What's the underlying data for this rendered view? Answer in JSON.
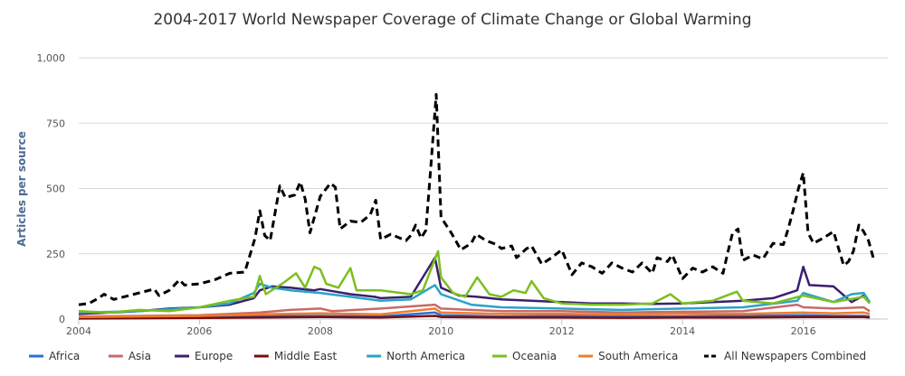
{
  "chart_data": {
    "type": "line",
    "title": "2004-2017 World Newspaper Coverage of Climate Change or Global Warming",
    "ylabel": "Articles per source",
    "xlabel": "",
    "xlim": [
      2004,
      2017.4
    ],
    "ylim": [
      0,
      1000
    ],
    "x_ticks": [
      2004,
      2006,
      2008,
      2010,
      2012,
      2014,
      2016
    ],
    "x_tick_labels": [
      "2004",
      "2006",
      "2008",
      "2010",
      "2012",
      "2014",
      "2016"
    ],
    "y_ticks": [
      0,
      250,
      500,
      750,
      1000
    ],
    "y_tick_labels": [
      "0",
      "250",
      "500",
      "750",
      "1,000"
    ],
    "grid": "horizontal",
    "legend": "bottom",
    "x_resolution": "monthly (x = year + (month-1)/12)",
    "series": [
      {
        "name": "Africa",
        "color": "#2a6fd6",
        "dashed": false,
        "points": [
          [
            2004.0,
            5
          ],
          [
            2005.0,
            6
          ],
          [
            2006.0,
            8
          ],
          [
            2007.0,
            10
          ],
          [
            2007.5,
            12
          ],
          [
            2008.0,
            12
          ],
          [
            2009.0,
            10
          ],
          [
            2009.9,
            25
          ],
          [
            2010.0,
            15
          ],
          [
            2011.0,
            10
          ],
          [
            2012.0,
            12
          ],
          [
            2013.0,
            10
          ],
          [
            2014.0,
            10
          ],
          [
            2015.0,
            12
          ],
          [
            2016.0,
            15
          ],
          [
            2016.5,
            12
          ],
          [
            2017.0,
            12
          ],
          [
            2017.1,
            10
          ]
        ]
      },
      {
        "name": "Asia",
        "color": "#c96a6a",
        "dashed": false,
        "points": [
          [
            2004.0,
            10
          ],
          [
            2005.0,
            12
          ],
          [
            2006.0,
            15
          ],
          [
            2007.0,
            25
          ],
          [
            2007.5,
            35
          ],
          [
            2008.0,
            40
          ],
          [
            2008.2,
            30
          ],
          [
            2009.0,
            40
          ],
          [
            2009.9,
            55
          ],
          [
            2010.0,
            40
          ],
          [
            2010.5,
            35
          ],
          [
            2011.0,
            30
          ],
          [
            2012.0,
            30
          ],
          [
            2013.0,
            25
          ],
          [
            2014.0,
            28
          ],
          [
            2015.0,
            30
          ],
          [
            2015.9,
            55
          ],
          [
            2016.0,
            45
          ],
          [
            2016.5,
            40
          ],
          [
            2017.0,
            45
          ],
          [
            2017.1,
            30
          ]
        ]
      },
      {
        "name": "Europe",
        "color": "#3b1f6e",
        "dashed": false,
        "points": [
          [
            2004.0,
            20
          ],
          [
            2004.5,
            25
          ],
          [
            2005.0,
            30
          ],
          [
            2005.5,
            40
          ],
          [
            2006.0,
            45
          ],
          [
            2006.5,
            55
          ],
          [
            2006.9,
            80
          ],
          [
            2007.0,
            110
          ],
          [
            2007.2,
            125
          ],
          [
            2007.5,
            120
          ],
          [
            2007.9,
            110
          ],
          [
            2008.0,
            115
          ],
          [
            2008.5,
            95
          ],
          [
            2008.9,
            85
          ],
          [
            2009.0,
            80
          ],
          [
            2009.5,
            85
          ],
          [
            2009.9,
            235
          ],
          [
            2010.0,
            120
          ],
          [
            2010.3,
            90
          ],
          [
            2010.6,
            85
          ],
          [
            2011.0,
            75
          ],
          [
            2011.5,
            70
          ],
          [
            2012.0,
            65
          ],
          [
            2012.5,
            60
          ],
          [
            2013.0,
            60
          ],
          [
            2013.5,
            58
          ],
          [
            2014.0,
            60
          ],
          [
            2014.5,
            65
          ],
          [
            2015.0,
            70
          ],
          [
            2015.5,
            80
          ],
          [
            2015.9,
            110
          ],
          [
            2016.0,
            200
          ],
          [
            2016.1,
            130
          ],
          [
            2016.5,
            125
          ],
          [
            2016.8,
            65
          ],
          [
            2017.0,
            90
          ],
          [
            2017.1,
            65
          ]
        ]
      },
      {
        "name": "Middle East",
        "color": "#7a0d0d",
        "dashed": false,
        "points": [
          [
            2004.0,
            2
          ],
          [
            2006.0,
            4
          ],
          [
            2007.0,
            6
          ],
          [
            2008.0,
            8
          ],
          [
            2009.0,
            6
          ],
          [
            2009.9,
            12
          ],
          [
            2010.0,
            8
          ],
          [
            2011.0,
            6
          ],
          [
            2012.0,
            6
          ],
          [
            2013.0,
            5
          ],
          [
            2014.0,
            6
          ],
          [
            2015.0,
            6
          ],
          [
            2016.0,
            8
          ],
          [
            2017.0,
            8
          ],
          [
            2017.1,
            6
          ]
        ]
      },
      {
        "name": "North America",
        "color": "#2aa3c9",
        "dashed": false,
        "points": [
          [
            2004.0,
            25
          ],
          [
            2005.0,
            30
          ],
          [
            2006.0,
            45
          ],
          [
            2006.5,
            60
          ],
          [
            2006.9,
            100
          ],
          [
            2007.0,
            135
          ],
          [
            2007.2,
            120
          ],
          [
            2007.5,
            110
          ],
          [
            2008.0,
            100
          ],
          [
            2008.5,
            85
          ],
          [
            2009.0,
            70
          ],
          [
            2009.5,
            75
          ],
          [
            2009.9,
            130
          ],
          [
            2010.0,
            95
          ],
          [
            2010.5,
            55
          ],
          [
            2011.0,
            45
          ],
          [
            2012.0,
            40
          ],
          [
            2013.0,
            35
          ],
          [
            2014.0,
            40
          ],
          [
            2015.0,
            45
          ],
          [
            2015.9,
            70
          ],
          [
            2016.0,
            100
          ],
          [
            2016.5,
            65
          ],
          [
            2016.8,
            95
          ],
          [
            2017.0,
            100
          ],
          [
            2017.1,
            65
          ]
        ]
      },
      {
        "name": "Oceania",
        "color": "#7bbf1e",
        "dashed": false,
        "points": [
          [
            2004.0,
            30
          ],
          [
            2004.5,
            25
          ],
          [
            2005.0,
            35
          ],
          [
            2005.5,
            30
          ],
          [
            2006.0,
            45
          ],
          [
            2006.5,
            70
          ],
          [
            2006.9,
            85
          ],
          [
            2007.0,
            165
          ],
          [
            2007.1,
            95
          ],
          [
            2007.4,
            140
          ],
          [
            2007.6,
            175
          ],
          [
            2007.75,
            120
          ],
          [
            2007.9,
            200
          ],
          [
            2008.0,
            190
          ],
          [
            2008.1,
            135
          ],
          [
            2008.3,
            120
          ],
          [
            2008.5,
            195
          ],
          [
            2008.6,
            110
          ],
          [
            2009.0,
            110
          ],
          [
            2009.5,
            95
          ],
          [
            2009.7,
            110
          ],
          [
            2009.9,
            230
          ],
          [
            2009.95,
            260
          ],
          [
            2010.0,
            160
          ],
          [
            2010.2,
            100
          ],
          [
            2010.4,
            85
          ],
          [
            2010.6,
            160
          ],
          [
            2010.8,
            95
          ],
          [
            2011.0,
            85
          ],
          [
            2011.2,
            110
          ],
          [
            2011.4,
            100
          ],
          [
            2011.5,
            145
          ],
          [
            2011.7,
            80
          ],
          [
            2012.0,
            60
          ],
          [
            2012.5,
            55
          ],
          [
            2013.0,
            55
          ],
          [
            2013.5,
            60
          ],
          [
            2013.8,
            95
          ],
          [
            2014.0,
            60
          ],
          [
            2014.5,
            70
          ],
          [
            2014.9,
            105
          ],
          [
            2015.0,
            70
          ],
          [
            2015.5,
            60
          ],
          [
            2016.0,
            90
          ],
          [
            2016.5,
            65
          ],
          [
            2017.0,
            85
          ],
          [
            2017.1,
            60
          ]
        ]
      },
      {
        "name": "South America",
        "color": "#ef7d2c",
        "dashed": false,
        "points": [
          [
            2004.0,
            8
          ],
          [
            2005.0,
            10
          ],
          [
            2006.0,
            12
          ],
          [
            2007.0,
            18
          ],
          [
            2008.0,
            22
          ],
          [
            2009.0,
            18
          ],
          [
            2009.9,
            40
          ],
          [
            2010.0,
            25
          ],
          [
            2011.0,
            20
          ],
          [
            2012.0,
            20
          ],
          [
            2013.0,
            18
          ],
          [
            2014.0,
            20
          ],
          [
            2015.0,
            20
          ],
          [
            2016.0,
            25
          ],
          [
            2016.5,
            22
          ],
          [
            2017.0,
            25
          ],
          [
            2017.1,
            20
          ]
        ]
      },
      {
        "name": "All Newspapers Combined",
        "color": "#000000",
        "dashed": true,
        "points": [
          [
            2004.0,
            55
          ],
          [
            2004.17,
            60
          ],
          [
            2004.33,
            80
          ],
          [
            2004.42,
            95
          ],
          [
            2004.58,
            75
          ],
          [
            2004.75,
            85
          ],
          [
            2005.0,
            100
          ],
          [
            2005.25,
            115
          ],
          [
            2005.33,
            90
          ],
          [
            2005.5,
            110
          ],
          [
            2005.67,
            150
          ],
          [
            2005.75,
            130
          ],
          [
            2006.0,
            135
          ],
          [
            2006.25,
            150
          ],
          [
            2006.5,
            175
          ],
          [
            2006.75,
            180
          ],
          [
            2006.83,
            240
          ],
          [
            2006.92,
            310
          ],
          [
            2007.0,
            415
          ],
          [
            2007.08,
            320
          ],
          [
            2007.17,
            300
          ],
          [
            2007.33,
            510
          ],
          [
            2007.42,
            465
          ],
          [
            2007.58,
            475
          ],
          [
            2007.67,
            525
          ],
          [
            2007.75,
            460
          ],
          [
            2007.83,
            330
          ],
          [
            2008.0,
            470
          ],
          [
            2008.17,
            520
          ],
          [
            2008.25,
            505
          ],
          [
            2008.33,
            345
          ],
          [
            2008.5,
            375
          ],
          [
            2008.67,
            370
          ],
          [
            2008.83,
            400
          ],
          [
            2008.92,
            455
          ],
          [
            2009.0,
            305
          ],
          [
            2009.17,
            325
          ],
          [
            2009.42,
            300
          ],
          [
            2009.5,
            320
          ],
          [
            2009.58,
            360
          ],
          [
            2009.67,
            310
          ],
          [
            2009.75,
            340
          ],
          [
            2009.83,
            580
          ],
          [
            2009.92,
            860
          ],
          [
            2010.0,
            390
          ],
          [
            2010.17,
            330
          ],
          [
            2010.33,
            265
          ],
          [
            2010.5,
            290
          ],
          [
            2010.58,
            325
          ],
          [
            2010.75,
            300
          ],
          [
            2010.92,
            285
          ],
          [
            2011.0,
            270
          ],
          [
            2011.17,
            280
          ],
          [
            2011.25,
            235
          ],
          [
            2011.42,
            270
          ],
          [
            2011.5,
            280
          ],
          [
            2011.67,
            210
          ],
          [
            2011.83,
            235
          ],
          [
            2012.0,
            265
          ],
          [
            2012.17,
            170
          ],
          [
            2012.33,
            215
          ],
          [
            2012.5,
            200
          ],
          [
            2012.67,
            175
          ],
          [
            2012.83,
            215
          ],
          [
            2013.0,
            195
          ],
          [
            2013.17,
            180
          ],
          [
            2013.33,
            215
          ],
          [
            2013.5,
            175
          ],
          [
            2013.58,
            235
          ],
          [
            2013.75,
            220
          ],
          [
            2013.83,
            245
          ],
          [
            2014.0,
            155
          ],
          [
            2014.17,
            195
          ],
          [
            2014.33,
            180
          ],
          [
            2014.5,
            200
          ],
          [
            2014.67,
            175
          ],
          [
            2014.75,
            255
          ],
          [
            2014.83,
            330
          ],
          [
            2014.92,
            345
          ],
          [
            2015.0,
            225
          ],
          [
            2015.17,
            245
          ],
          [
            2015.33,
            230
          ],
          [
            2015.5,
            290
          ],
          [
            2015.67,
            285
          ],
          [
            2015.75,
            345
          ],
          [
            2015.83,
            415
          ],
          [
            2015.92,
            500
          ],
          [
            2016.0,
            560
          ],
          [
            2016.08,
            330
          ],
          [
            2016.17,
            290
          ],
          [
            2016.33,
            310
          ],
          [
            2016.5,
            335
          ],
          [
            2016.67,
            205
          ],
          [
            2016.75,
            220
          ],
          [
            2016.83,
            260
          ],
          [
            2016.92,
            360
          ],
          [
            2017.0,
            335
          ],
          [
            2017.08,
            300
          ],
          [
            2017.17,
            225
          ]
        ]
      }
    ]
  }
}
